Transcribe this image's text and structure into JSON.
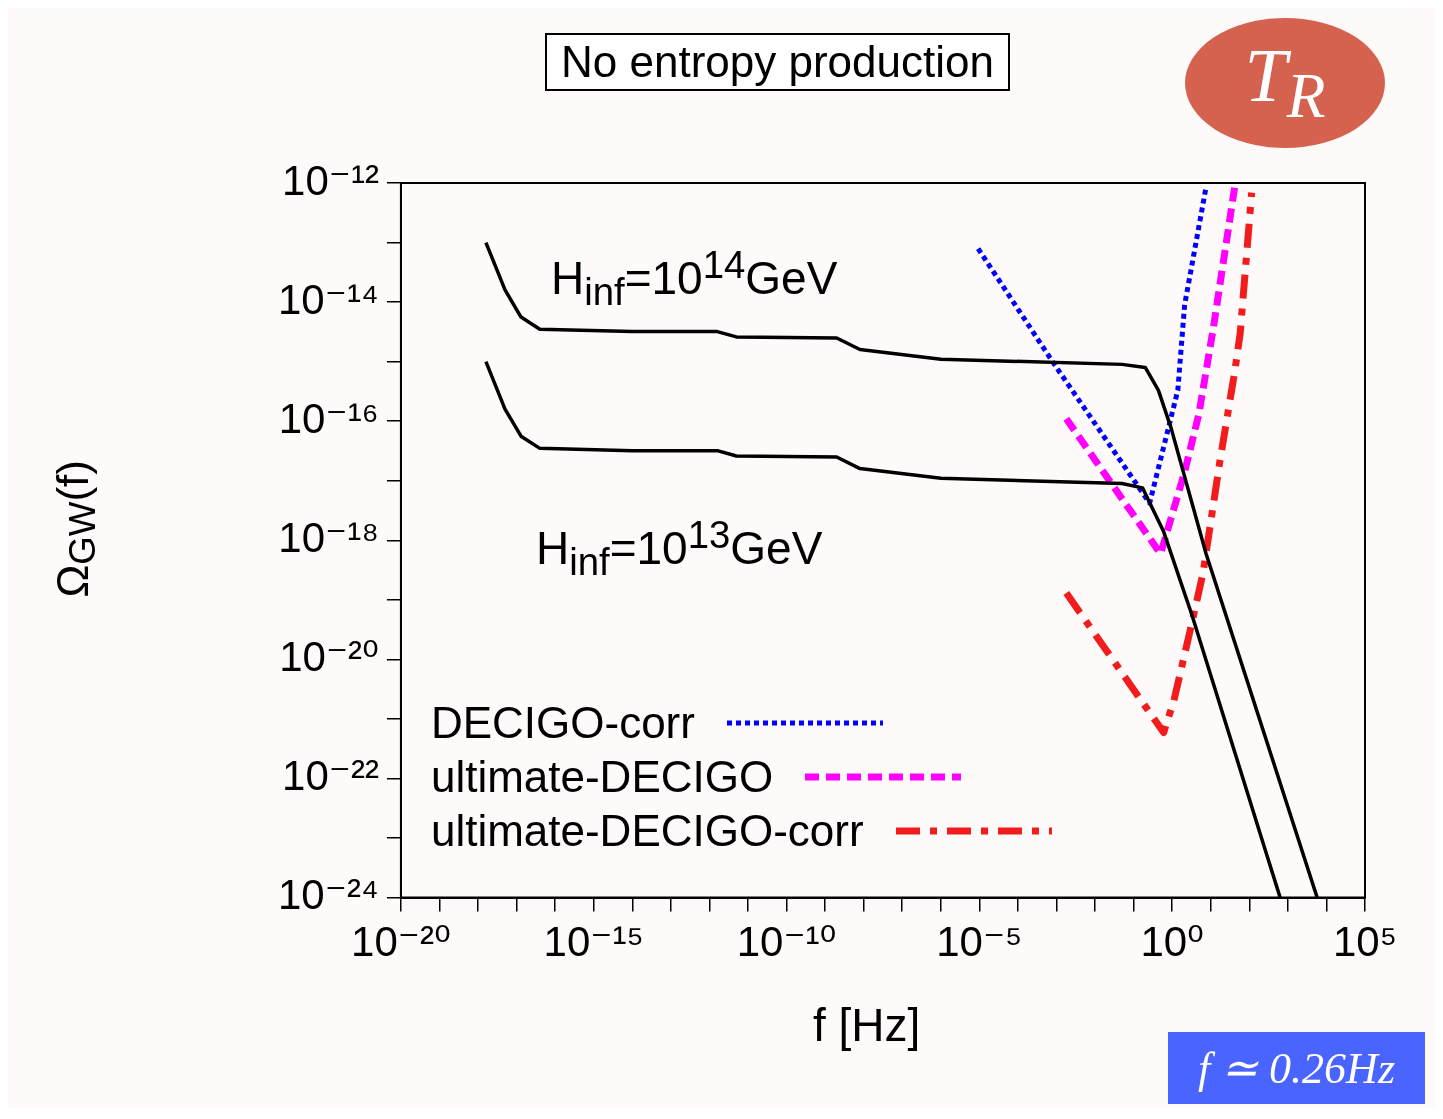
{
  "chart_data": {
    "type": "line",
    "xlabel": "f [Hz]",
    "ylabel": "Ω$_{GW}$(f)",
    "annotations": [
      "No entropy production",
      "T$_{R}$",
      "f ≃ 0.26Hz"
    ],
    "log": "xy",
    "grid": false,
    "legend": "bottom left",
    "marker": "none",
    "xlim": [
      1e-20,
      100000.0
    ],
    "ylim": [
      1e-24,
      1e-12
    ],
    "xticks": [
      {
        "value": 1e-20,
        "label": "10⁻²⁰"
      },
      {
        "value": 1e-19,
        "label": null
      },
      {
        "value": 1e-18,
        "label": null
      },
      {
        "value": 1e-17,
        "label": null
      },
      {
        "value": 1e-16,
        "label": null
      },
      {
        "value": 1e-15,
        "label": "10⁻¹⁵"
      },
      {
        "value": 1e-14,
        "label": null
      },
      {
        "value": 1e-13,
        "label": null
      },
      {
        "value": 1e-12,
        "label": null
      },
      {
        "value": 1e-11,
        "label": null
      },
      {
        "value": 1e-10,
        "label": "10⁻¹⁰"
      },
      {
        "value": 1e-09,
        "label": null
      },
      {
        "value": 1e-08,
        "label": null
      },
      {
        "value": 1e-07,
        "label": null
      },
      {
        "value": 1e-06,
        "label": null
      },
      {
        "value": 1e-05,
        "label": "10⁻⁵"
      },
      {
        "value": 0.0001,
        "label": null
      },
      {
        "value": 0.001,
        "label": null
      },
      {
        "value": 0.01,
        "label": null
      },
      {
        "value": 0.1,
        "label": null
      },
      {
        "value": 1,
        "label": "10⁰"
      },
      {
        "value": 10,
        "label": null
      },
      {
        "value": 100,
        "label": null
      },
      {
        "value": 1000,
        "label": null
      },
      {
        "value": 10000,
        "label": null
      },
      {
        "value": 100000,
        "label": "10⁵"
      }
    ],
    "yticks": [
      {
        "value": 1e-24,
        "label": "10⁻²⁴"
      },
      {
        "value": 1e-23,
        "label": null
      },
      {
        "value": 1e-22,
        "label": "10⁻²²"
      },
      {
        "value": 1e-21,
        "label": null
      },
      {
        "value": 1e-20,
        "label": "10⁻²⁰"
      },
      {
        "value": 1e-19,
        "label": null
      },
      {
        "value": 1e-18,
        "label": "10⁻¹⁸"
      },
      {
        "value": 1e-17,
        "label": null
      },
      {
        "value": 1e-16,
        "label": "10⁻¹⁶"
      },
      {
        "value": 1e-15,
        "label": null
      },
      {
        "value": 1e-14,
        "label": "10⁻¹⁴"
      },
      {
        "value": 1e-13,
        "label": null
      },
      {
        "value": 1e-12,
        "label": "10⁻¹²"
      }
    ],
    "series": [
      {
        "name": "H$_{inf}$=10$^{14}$GeV",
        "color": "#000000",
        "line_style": "solid",
        "x": [
          1.6e-18,
          5e-18,
          1.3e-17,
          4e-17,
          1e-14,
          1.6e-12,
          5e-12,
          2e-09,
          8e-09,
          1e-06,
          0.05,
          0.2,
          0.44,
          0.93,
          7.6,
          5750
        ],
        "values": [
          1e-13,
          1.6e-14,
          5.6e-15,
          3.5e-15,
          3.2e-15,
          3.2e-15,
          2.6e-15,
          2.5e-15,
          1.6e-15,
          1.1e-15,
          9e-16,
          8e-16,
          3.3e-16,
          7.8e-17,
          5.9e-19,
          1e-24
        ]
      },
      {
        "name": "H$_{inf}$=10$^{13}$GeV",
        "color": "#000000",
        "line_style": "solid",
        "x": [
          1.6e-18,
          5e-18,
          1.3e-17,
          4e-17,
          1e-14,
          1.6e-12,
          5e-12,
          2e-09,
          8e-09,
          1e-06,
          0.05,
          0.17,
          0.6,
          3.3,
          630
        ],
        "values": [
          1e-15,
          1.6e-16,
          5.6e-17,
          3.5e-17,
          3.2e-17,
          3.2e-17,
          2.6e-17,
          2.5e-17,
          1.6e-17,
          1.1e-17,
          9e-18,
          7.6e-18,
          1.4e-18,
          5.4e-20,
          1e-24
        ]
      },
      {
        "name": "DECIGO-corr",
        "color": "#0000ff",
        "line_style": "dotted",
        "x": [
          9.3e-06,
          0.00089,
          0.26,
          1.4,
          2.1,
          7.6
        ],
        "values": [
          7.9e-14,
          8.9e-16,
          4.2e-18,
          3.3e-16,
          8.9e-15,
          8.7e-13
        ]
      },
      {
        "name": "ultimate-DECIGO",
        "color": "#ff00ff",
        "line_style": "dashed",
        "x": [
          0.0018,
          0.5,
          2.1,
          4.9,
          11.7,
          42
        ],
        "values": [
          1.1e-16,
          5.9e-19,
          1.4e-17,
          1.3e-16,
          3.7e-15,
          8.7e-13
        ]
      },
      {
        "name": "ultimate-DECIGO-corr",
        "color": "#f21c1c",
        "line_style": "dashdot",
        "x": [
          0.0018,
          0.6,
          1.1,
          2.6,
          6.3,
          17,
          42,
          58,
          115
        ],
        "values": [
          1.3e-19,
          5.9e-22,
          2e-21,
          2.2e-20,
          2.8e-19,
          2e-17,
          6.9e-16,
          3e-15,
          6.9e-13
        ]
      }
    ]
  }
}
